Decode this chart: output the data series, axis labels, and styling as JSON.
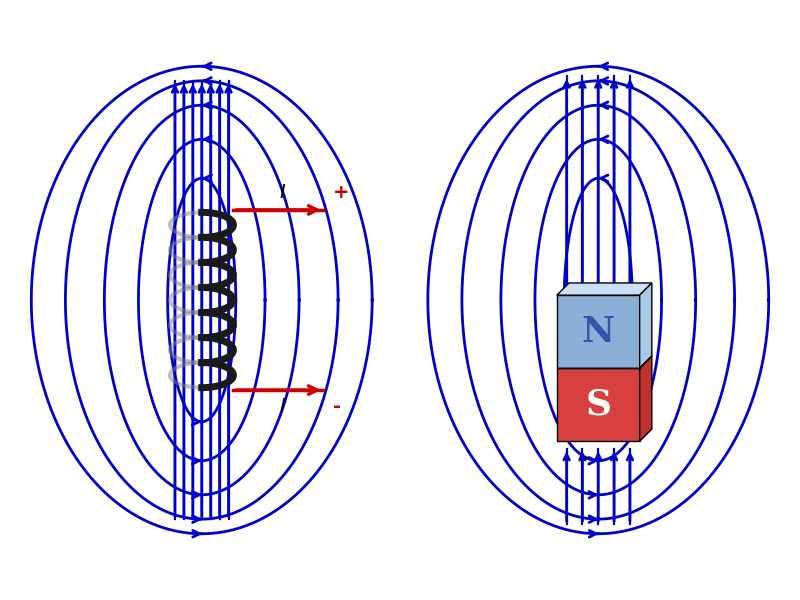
{
  "bg_color": "#ffffff",
  "line_color": "#0000cc",
  "line_width": 2.0,
  "arrow_color": "#0000cc",
  "coil_color": "#1a1a1a",
  "current_color": "#cc0000",
  "magnet_N_color_top": "#aac4e8",
  "magnet_N_color_bot": "#6688cc",
  "magnet_S_color_top": "#e88888",
  "magnet_S_color_bot": "#cc2222",
  "N_label": "N",
  "S_label": "S",
  "I_label": "I",
  "plus_label": "+",
  "minus_label": "-"
}
